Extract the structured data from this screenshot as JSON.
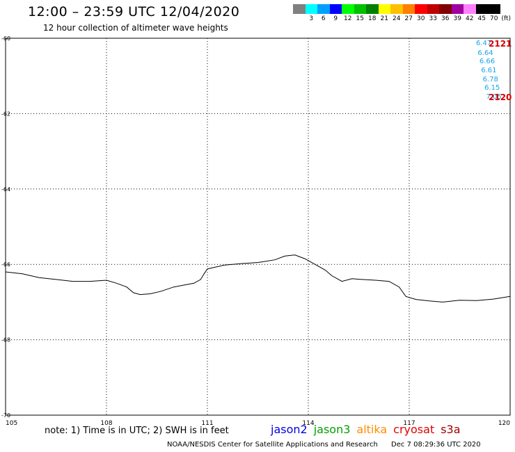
{
  "header": {
    "title": "12:00 – 23:59 UTC 12/04/2020",
    "subtitle": "12 hour collection of altimeter wave heights"
  },
  "legend": {
    "unit_label": "(ft)",
    "bins": [
      {
        "color": "#808080",
        "label": ""
      },
      {
        "color": "#00ffff",
        "label": "3"
      },
      {
        "color": "#00a0ff",
        "label": "6"
      },
      {
        "color": "#0000ff",
        "label": "9"
      },
      {
        "color": "#00ff00",
        "label": "12"
      },
      {
        "color": "#00c000",
        "label": "15"
      },
      {
        "color": "#008000",
        "label": "18"
      },
      {
        "color": "#ffff00",
        "label": "21"
      },
      {
        "color": "#ffc000",
        "label": "24"
      },
      {
        "color": "#ff8000",
        "label": "27"
      },
      {
        "color": "#ff0000",
        "label": "30"
      },
      {
        "color": "#c00000",
        "label": "33"
      },
      {
        "color": "#800000",
        "label": "36"
      },
      {
        "color": "#a000a0",
        "label": "39"
      },
      {
        "color": "#ff80ff",
        "label": "42"
      },
      {
        "color": "#000000",
        "label": "45"
      },
      {
        "color": "#000000",
        "label": "70"
      }
    ]
  },
  "chart_data": {
    "type": "scatter",
    "title": "12:00 – 23:59 UTC 12/04/2020",
    "subtitle": "12 hour collection of altimeter wave heights",
    "x_ticks": [
      "105",
      "108",
      "111",
      "114",
      "117",
      "120"
    ],
    "y_ticks": [
      "-60",
      "-62",
      "-64",
      "-66",
      "-68",
      "-70"
    ],
    "xlim": [
      105,
      120
    ],
    "ylim": [
      -60,
      -70
    ],
    "grid": true,
    "coastline": [
      [
        105.0,
        -66.2
      ],
      [
        105.5,
        -66.25
      ],
      [
        106.0,
        -66.35
      ],
      [
        106.5,
        -66.4
      ],
      [
        107.0,
        -66.45
      ],
      [
        107.5,
        -66.45
      ],
      [
        108.0,
        -66.42
      ],
      [
        108.3,
        -66.5
      ],
      [
        108.6,
        -66.6
      ],
      [
        108.8,
        -66.75
      ],
      [
        109.0,
        -66.8
      ],
      [
        109.3,
        -66.78
      ],
      [
        109.6,
        -66.72
      ],
      [
        110.0,
        -66.6
      ],
      [
        110.3,
        -66.55
      ],
      [
        110.6,
        -66.5
      ],
      [
        110.8,
        -66.4
      ],
      [
        110.9,
        -66.25
      ],
      [
        111.0,
        -66.12
      ],
      [
        111.5,
        -66.02
      ],
      [
        112.0,
        -65.98
      ],
      [
        112.5,
        -65.95
      ],
      [
        113.0,
        -65.88
      ],
      [
        113.3,
        -65.78
      ],
      [
        113.6,
        -65.75
      ],
      [
        113.9,
        -65.85
      ],
      [
        114.2,
        -66.0
      ],
      [
        114.5,
        -66.15
      ],
      [
        114.7,
        -66.3
      ],
      [
        115.0,
        -66.45
      ],
      [
        115.3,
        -66.38
      ],
      [
        115.6,
        -66.4
      ],
      [
        116.0,
        -66.42
      ],
      [
        116.4,
        -66.45
      ],
      [
        116.7,
        -66.6
      ],
      [
        116.9,
        -66.85
      ],
      [
        117.2,
        -66.93
      ],
      [
        117.6,
        -66.97
      ],
      [
        118.0,
        -67.0
      ],
      [
        118.5,
        -66.95
      ],
      [
        119.0,
        -66.96
      ],
      [
        119.5,
        -66.92
      ],
      [
        120.0,
        -66.85
      ]
    ],
    "annotations": [
      {
        "text": "6.47",
        "x": 119.4,
        "y": -60.08
      },
      {
        "text": "6.64",
        "x": 119.45,
        "y": -60.33
      },
      {
        "text": "6.66",
        "x": 119.5,
        "y": -60.56
      },
      {
        "text": "6.61",
        "x": 119.55,
        "y": -60.8
      },
      {
        "text": "6.78",
        "x": 119.6,
        "y": -61.03
      },
      {
        "text": "6.15",
        "x": 119.65,
        "y": -61.26
      },
      {
        "text": "7.05",
        "x": 119.7,
        "y": -61.5
      }
    ],
    "pass_labels": [
      {
        "text": "2121",
        "x": 120.0,
        "y": -60.08
      },
      {
        "text": "2120",
        "x": 120.3,
        "y": -61.5
      }
    ]
  },
  "footer": {
    "note": "note: 1) Time is in UTC; 2) SWH is in feet",
    "satellites": [
      {
        "name": "jason2",
        "color": "#0000e0"
      },
      {
        "name": "jason3",
        "color": "#00a000"
      },
      {
        "name": "altika",
        "color": "#ff8c00"
      },
      {
        "name": "cryosat",
        "color": "#e00000"
      },
      {
        "name": "s3a",
        "color": "#a00000"
      }
    ],
    "credit": "NOAA/NESDIS Center for Satellite Applications and Research",
    "timestamp": "Dec  7 08:29:36 UTC 2020"
  }
}
